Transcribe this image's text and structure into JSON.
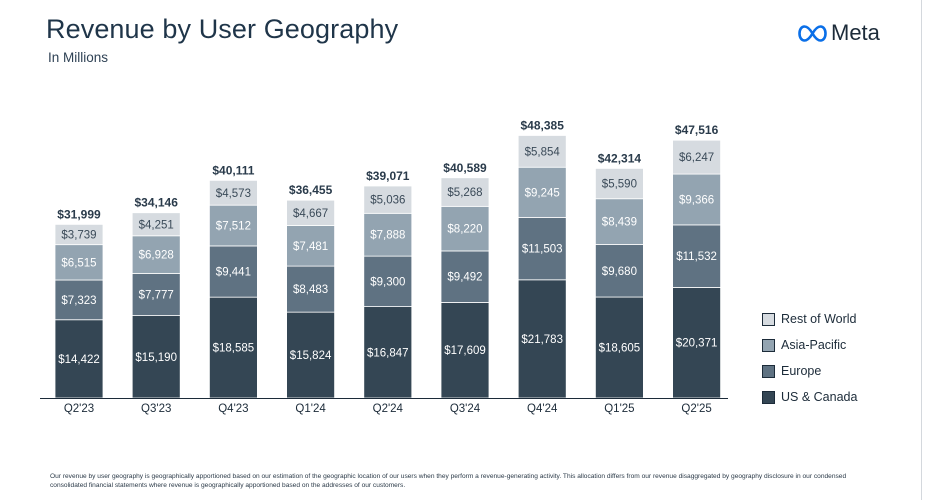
{
  "header": {
    "title": "Revenue by User Geography",
    "subtitle": "In Millions",
    "logo_text": "Meta",
    "logo_icon": "meta-infinity-icon"
  },
  "footnote": "Our revenue by user geography is geographically apportioned based on our estimation of the geographic location of our users when they perform a revenue-generating activity. This allocation differs from our revenue disaggregated by geography disclosure in our condensed consolidated financial statements where revenue is geographically apportioned based on the addresses of our customers.",
  "chart_data": {
    "type": "bar",
    "stacked": true,
    "title": "Revenue by User Geography",
    "subtitle": "In Millions",
    "categories": [
      "Q2'23",
      "Q3'23",
      "Q4'23",
      "Q1'24",
      "Q2'24",
      "Q3'24",
      "Q4'24",
      "Q1'25",
      "Q2'25"
    ],
    "series": [
      {
        "name": "US & Canada",
        "color": "#344654",
        "label_color": "#ffffff",
        "values": [
          14422,
          15190,
          18585,
          15824,
          16847,
          17609,
          21783,
          18605,
          20371
        ]
      },
      {
        "name": "Europe",
        "color": "#5f7282",
        "label_color": "#ffffff",
        "values": [
          7323,
          7777,
          9441,
          8483,
          9300,
          9492,
          11503,
          9680,
          11532
        ]
      },
      {
        "name": "Asia-Pacific",
        "color": "#93a4b1",
        "label_color": "#ffffff",
        "values": [
          6515,
          6928,
          7512,
          7481,
          7888,
          8220,
          9245,
          8439,
          9366
        ]
      },
      {
        "name": "Rest of World",
        "color": "#d6dbe0",
        "label_color": "#3a4a58",
        "values": [
          3739,
          4251,
          4573,
          4667,
          5036,
          5268,
          5854,
          5590,
          6247
        ]
      }
    ],
    "totals": [
      31999,
      34146,
      40111,
      36455,
      39071,
      40589,
      48385,
      42314,
      47516
    ],
    "value_labels": [
      [
        "$14,422",
        "$7,323",
        "$6,515",
        "$3,739"
      ],
      [
        "$15,190",
        "$7,777",
        "$6,928",
        "$4,251"
      ],
      [
        "$18,585",
        "$9,441",
        "$7,512",
        "$4,573"
      ],
      [
        "$15,824",
        "$8,483",
        "$7,481",
        "$4,667"
      ],
      [
        "$16,847",
        "$9,300",
        "$7,888",
        "$5,036"
      ],
      [
        "$17,609",
        "$9,492",
        "$8,220",
        "$5,268"
      ],
      [
        "$21,783",
        "$11,503",
        "$9,245",
        "$5,854"
      ],
      [
        "$18,605",
        "$9,680",
        "$8,439",
        "$5,590"
      ],
      [
        "$20,371",
        "$11,532",
        "$9,366",
        "$6,247"
      ]
    ],
    "total_labels": [
      "$31,999",
      "$34,146",
      "$40,111",
      "$36,455",
      "$39,071",
      "$40,589",
      "$48,385",
      "$42,314",
      "$47,516"
    ],
    "legend": [
      "Rest of World",
      "Asia-Pacific",
      "Europe",
      "US & Canada"
    ],
    "legend_placement": "right",
    "grid": false,
    "ylim": [
      0,
      48385
    ]
  }
}
